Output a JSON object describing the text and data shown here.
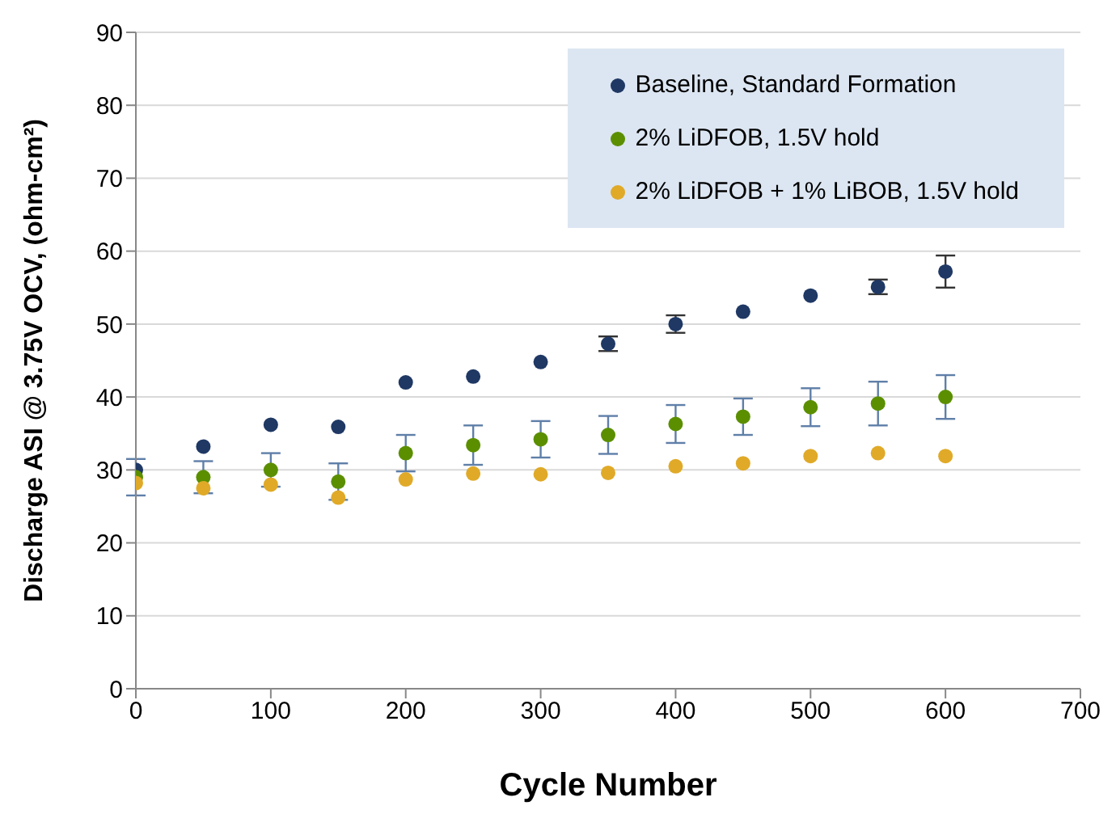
{
  "chart_data": {
    "type": "scatter",
    "xlabel": "Cycle Number",
    "ylabel": "Discharge ASI @ 3.75V OCV,   (ohm-cm²)",
    "x": [
      0,
      50,
      100,
      150,
      200,
      250,
      300,
      350,
      400,
      450,
      500,
      550,
      600
    ],
    "xlim": [
      0,
      700
    ],
    "xticks": [
      0,
      100,
      200,
      300,
      400,
      500,
      600,
      700
    ],
    "ylim": [
      0,
      90
    ],
    "yticks": [
      0,
      10,
      20,
      30,
      40,
      50,
      60,
      70,
      80,
      90
    ],
    "grid": "y",
    "legend": "top right",
    "marker": "circle",
    "series": [
      {
        "name": "Baseline, Standard Formation",
        "color": "#1f3864",
        "values": [
          30,
          33.2,
          36.2,
          35.9,
          42,
          42.8,
          44.8,
          47.3,
          50,
          51.7,
          53.9,
          55.1,
          57.2
        ],
        "errors": [
          null,
          null,
          null,
          null,
          null,
          null,
          null,
          1,
          1.2,
          null,
          null,
          1,
          2.2
        ]
      },
      {
        "name": "2% LiDFOB, 1.5V hold",
        "color": "#5b8f00",
        "values": [
          29,
          29,
          30,
          28.4,
          32.3,
          33.4,
          34.2,
          34.8,
          36.3,
          37.3,
          38.6,
          39.1,
          40
        ],
        "errors": [
          2.5,
          2.2,
          2.3,
          2.5,
          2.5,
          2.7,
          2.5,
          2.6,
          2.6,
          2.5,
          2.6,
          3,
          3
        ]
      },
      {
        "name": "2% LiDFOB + 1% LiBOB, 1.5V hold",
        "color": "#e0aa28",
        "values": [
          28.2,
          27.5,
          28,
          26.2,
          28.7,
          29.5,
          29.4,
          29.6,
          30.5,
          30.9,
          31.9,
          32.3,
          31.9
        ]
      }
    ]
  }
}
